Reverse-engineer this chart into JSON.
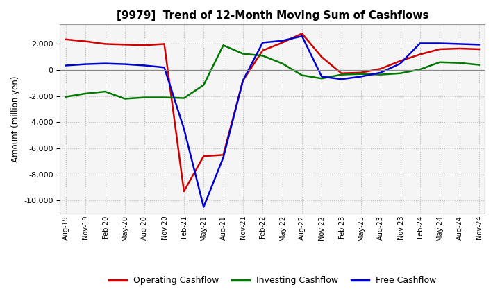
{
  "title": "[9979]  Trend of 12-Month Moving Sum of Cashflows",
  "ylabel": "Amount (million yen)",
  "ylim": [
    -11000,
    3500
  ],
  "yticks": [
    -10000,
    -8000,
    -6000,
    -4000,
    -2000,
    0,
    2000
  ],
  "background_color": "#ffffff",
  "plot_bg_color": "#f5f5f5",
  "grid_color": "#bbbbbb",
  "x_labels": [
    "Aug-19",
    "Nov-19",
    "Feb-20",
    "May-20",
    "Aug-20",
    "Nov-20",
    "Feb-21",
    "May-21",
    "Aug-21",
    "Nov-21",
    "Feb-22",
    "May-22",
    "Aug-22",
    "Nov-22",
    "Feb-23",
    "May-23",
    "Aug-23",
    "Nov-23",
    "Feb-24",
    "May-24",
    "Aug-24",
    "Nov-24"
  ],
  "operating_cashflow": [
    2350,
    2200,
    2000,
    1950,
    1900,
    2000,
    -9300,
    -6600,
    -6500,
    -800,
    1500,
    2100,
    2800,
    1000,
    -250,
    -200,
    100,
    700,
    1200,
    1600,
    1650,
    1600
  ],
  "investing_cashflow": [
    -2050,
    -1800,
    -1650,
    -2200,
    -2100,
    -2100,
    -2150,
    -1150,
    1900,
    1250,
    1100,
    500,
    -400,
    -650,
    -350,
    -300,
    -350,
    -250,
    50,
    600,
    550,
    400
  ],
  "free_cashflow": [
    350,
    450,
    500,
    450,
    350,
    200,
    -4500,
    -10500,
    -6700,
    -800,
    2100,
    2250,
    2600,
    -500,
    -700,
    -500,
    -200,
    500,
    2050,
    2050,
    2000,
    1950
  ],
  "op_color": "#cc0000",
  "inv_color": "#007700",
  "free_color": "#0000cc",
  "line_width": 1.8,
  "legend_labels": [
    "Operating Cashflow",
    "Investing Cashflow",
    "Free Cashflow"
  ]
}
